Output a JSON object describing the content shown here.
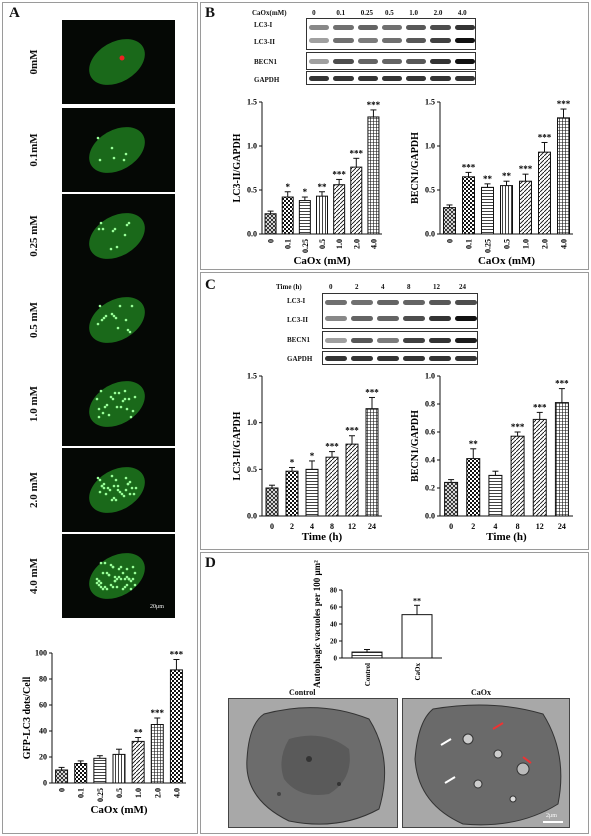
{
  "panels": {
    "A": {
      "label": "A",
      "micro_labels": [
        "0mM",
        "0.1mM",
        "0.25 mM",
        "0.5 mM",
        "1.0 mM",
        "2.0 mM",
        "4.0 mM"
      ],
      "scale_bar": "20μm"
    },
    "B": {
      "label": "B",
      "blot_header": "CaOx(mM)",
      "blot_conc": [
        "0",
        "0.1",
        "0.25",
        "0.5",
        "1.0",
        "2.0",
        "4.0"
      ],
      "blot_rows": [
        "LC3-I",
        "LC3-II",
        "BECN1",
        "GAPDH"
      ]
    },
    "C": {
      "label": "C",
      "blot_header": "Time (h)",
      "blot_times": [
        "0",
        "2",
        "4",
        "8",
        "12",
        "24"
      ],
      "blot_rows": [
        "LC3-I",
        "LC3-II",
        "BECN1",
        "GAPDH"
      ]
    },
    "D": {
      "label": "D",
      "em_labels": [
        "Control",
        "CaOx"
      ],
      "em_scale": "2μm"
    }
  },
  "chart_data": [
    {
      "id": "A-gfp",
      "type": "bar",
      "categories": [
        "0",
        "0.1",
        "0.25",
        "0.5",
        "1.0",
        "2.0",
        "4.0"
      ],
      "values": [
        10,
        15,
        19,
        22,
        32,
        45,
        87
      ],
      "errors": [
        2,
        2,
        2,
        4,
        3,
        5,
        8
      ],
      "significance": [
        "",
        "",
        "",
        "",
        "**",
        "***",
        "***"
      ],
      "ylabel": "GFP-LC3 dots/Cell",
      "xlabel": "CaOx (mM)",
      "ylim": [
        0,
        100
      ],
      "yticks": [
        0,
        20,
        40,
        60,
        80,
        100
      ]
    },
    {
      "id": "B-lc3",
      "type": "bar",
      "categories": [
        "0",
        "0.1",
        "0.25",
        "0.5",
        "1.0",
        "2.0",
        "4.0"
      ],
      "values": [
        0.23,
        0.42,
        0.38,
        0.43,
        0.56,
        0.76,
        1.33
      ],
      "errors": [
        0.03,
        0.06,
        0.04,
        0.05,
        0.06,
        0.1,
        0.08
      ],
      "significance": [
        "",
        "*",
        "*",
        "**",
        "***",
        "***",
        "***"
      ],
      "ylabel": "LC3-II/GAPDH",
      "xlabel": "CaOx (mM)",
      "ylim": [
        0,
        1.5
      ],
      "yticks": [
        0.0,
        0.5,
        1.0,
        1.5
      ]
    },
    {
      "id": "B-becn1",
      "type": "bar",
      "categories": [
        "0",
        "0.1",
        "0.25",
        "0.5",
        "1.0",
        "2.0",
        "4.0"
      ],
      "values": [
        0.3,
        0.65,
        0.53,
        0.55,
        0.6,
        0.93,
        1.32
      ],
      "errors": [
        0.03,
        0.05,
        0.04,
        0.05,
        0.08,
        0.11,
        0.1
      ],
      "significance": [
        "",
        "***",
        "**",
        "**",
        "***",
        "***",
        "***"
      ],
      "ylabel": "BECN1/GAPDH",
      "xlabel": "CaOx (mM)",
      "ylim": [
        0,
        1.5
      ],
      "yticks": [
        0.0,
        0.5,
        1.0,
        1.5
      ]
    },
    {
      "id": "C-lc3",
      "type": "bar",
      "categories": [
        "0",
        "2",
        "4",
        "8",
        "12",
        "24"
      ],
      "values": [
        0.3,
        0.48,
        0.5,
        0.63,
        0.77,
        1.15
      ],
      "errors": [
        0.03,
        0.04,
        0.09,
        0.06,
        0.09,
        0.12
      ],
      "significance": [
        "",
        "*",
        "*",
        "***",
        "***",
        "***"
      ],
      "ylabel": "LC3-II/GAPDH",
      "xlabel": "Time (h)",
      "ylim": [
        0,
        1.5
      ],
      "yticks": [
        0.0,
        0.5,
        1.0,
        1.5
      ]
    },
    {
      "id": "C-becn1",
      "type": "bar",
      "categories": [
        "0",
        "2",
        "4",
        "8",
        "12",
        "24"
      ],
      "values": [
        0.24,
        0.41,
        0.29,
        0.57,
        0.69,
        0.81
      ],
      "errors": [
        0.02,
        0.07,
        0.03,
        0.03,
        0.05,
        0.1
      ],
      "significance": [
        "",
        "**",
        "",
        "***",
        "***",
        "***"
      ],
      "ylabel": "BECN1/GAPDH",
      "xlabel": "Time (h)",
      "ylim": [
        0,
        1.0
      ],
      "yticks": [
        0.0,
        0.2,
        0.4,
        0.6,
        0.8,
        1.0
      ]
    },
    {
      "id": "D-vacuoles",
      "type": "bar",
      "categories": [
        "Control",
        "CaOx"
      ],
      "values": [
        7,
        51
      ],
      "errors": [
        3,
        11
      ],
      "significance": [
        "",
        "**"
      ],
      "ylabel": "Autophagic vacuoles per 100 μm²",
      "xlabel": "",
      "ylim": [
        0,
        80
      ],
      "yticks": [
        0,
        20,
        40,
        60,
        80
      ]
    }
  ]
}
